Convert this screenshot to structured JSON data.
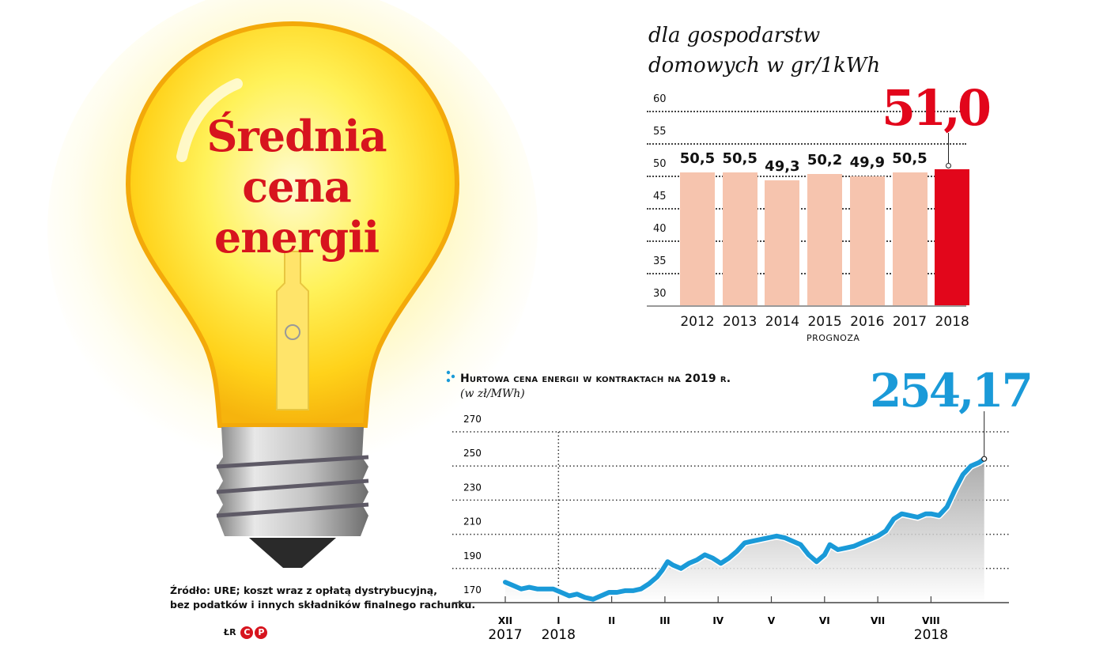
{
  "headline": {
    "lines": [
      "Średnia",
      "cena",
      "energii"
    ],
    "color": "#d7141e"
  },
  "source": {
    "line1": "Źródło: URE; koszt wraz z opłatą dystrybucyjną,",
    "line2": "bez podatków i innych składników finalnego rachunku.",
    "author": "ŁR",
    "logo": [
      "C",
      "P"
    ]
  },
  "chart_data": [
    {
      "type": "bar",
      "title": "dla gospodarstw domowych w gr/1kWh",
      "title_lines": [
        "dla gospodarstw",
        "domowych w gr/1kWh"
      ],
      "categories": [
        "2012",
        "2013",
        "2014",
        "2015",
        "2016",
        "2017",
        "2018"
      ],
      "values": [
        50.5,
        50.5,
        49.3,
        50.2,
        49.9,
        50.5,
        51.0
      ],
      "value_labels": [
        "50,5",
        "50,5",
        "49,3",
        "50,2",
        "49,9",
        "50,5",
        "51,0"
      ],
      "highlight": {
        "category": "2018",
        "label": "51,0",
        "note": "PROGNOZA",
        "color": "#e2061b"
      },
      "bar_color": "#f6c4ae",
      "yticks": [
        30,
        35,
        40,
        45,
        50,
        55,
        60
      ],
      "ylim": [
        30,
        60
      ],
      "xlabel": "",
      "ylabel": "",
      "grid": true
    },
    {
      "type": "area",
      "title": "Hurtowa cena energii w kontraktach na 2019 r.",
      "subtitle": "(w zł/MWh)",
      "yticks": [
        170,
        190,
        210,
        230,
        250,
        270
      ],
      "ylim": [
        170,
        275
      ],
      "xticks": [
        "XII",
        "I",
        "II",
        "III",
        "IV",
        "V",
        "VI",
        "VII",
        "VIII"
      ],
      "year_labels": [
        {
          "tick": "XII",
          "label": "2017"
        },
        {
          "tick": "I",
          "label": "2018"
        },
        {
          "tick": "VIII",
          "label": "2018"
        }
      ],
      "last_value": 254.17,
      "last_value_label": "254,17",
      "line_color": "#1a9ad8",
      "grid": true,
      "x_month_index": [
        0,
        0.15,
        0.3,
        0.45,
        0.6,
        0.75,
        0.9,
        1.05,
        1.2,
        1.35,
        1.5,
        1.65,
        1.8,
        1.95,
        2.1,
        2.25,
        2.4,
        2.55,
        2.7,
        2.85,
        2.95,
        3.05,
        3.15,
        3.3,
        3.45,
        3.6,
        3.75,
        3.9,
        4.05,
        4.2,
        4.35,
        4.5,
        4.65,
        4.8,
        4.95,
        5.1,
        5.25,
        5.4,
        5.55,
        5.7,
        5.85,
        6.0,
        6.1,
        6.25,
        6.4,
        6.55,
        6.7,
        6.85,
        7.0,
        7.15,
        7.3,
        7.45,
        7.6,
        7.75,
        7.9,
        8.0,
        8.15,
        8.3,
        8.45,
        8.6,
        8.75,
        8.9,
        9.0
      ],
      "values": [
        182,
        180,
        178,
        179,
        178,
        178,
        178,
        176,
        174,
        175,
        173,
        172,
        174,
        176,
        176,
        177,
        177,
        178,
        181,
        185,
        189,
        194,
        192,
        190,
        193,
        195,
        198,
        196,
        193,
        196,
        200,
        205,
        206,
        207,
        208,
        209,
        208,
        206,
        204,
        198,
        194,
        198,
        204,
        201,
        202,
        203,
        205,
        207,
        209,
        212,
        219,
        222,
        221,
        220,
        222,
        222,
        221,
        226,
        236,
        245,
        250,
        252,
        254.17
      ]
    }
  ]
}
